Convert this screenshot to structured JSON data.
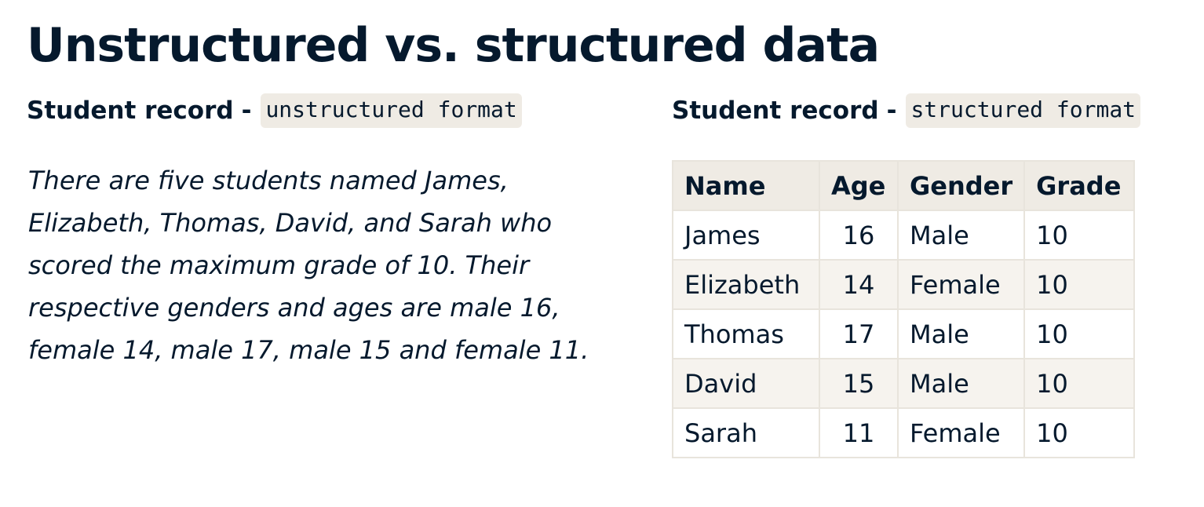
{
  "title": "Unstructured vs. structured data",
  "left": {
    "heading": "Student record",
    "dash": "-",
    "code": "unstructured format",
    "paragraph": "There are five students named James, Elizabeth, Thomas, David, and Sarah who scored the maximum grade of 10. Their respective genders and ages are male 16, female 14, male 17, male 15 and female 11."
  },
  "right": {
    "heading": "Student record",
    "dash": "-",
    "code": "structured format",
    "table": {
      "headers": [
        "Name",
        "Age",
        "Gender",
        "Grade"
      ],
      "rows": [
        [
          "James",
          "16",
          "Male",
          "10"
        ],
        [
          "Elizabeth",
          "14",
          "Female",
          "10"
        ],
        [
          "Thomas",
          "17",
          "Male",
          "10"
        ],
        [
          "David",
          "15",
          "Male",
          "10"
        ],
        [
          "Sarah",
          "11",
          "Female",
          "10"
        ]
      ]
    }
  },
  "colors": {
    "text": "#05192d",
    "code_background": "#efebe4",
    "header_background": "#efebe4",
    "stripe_background": "#f6f3ee",
    "border": "#e8e4dc"
  }
}
